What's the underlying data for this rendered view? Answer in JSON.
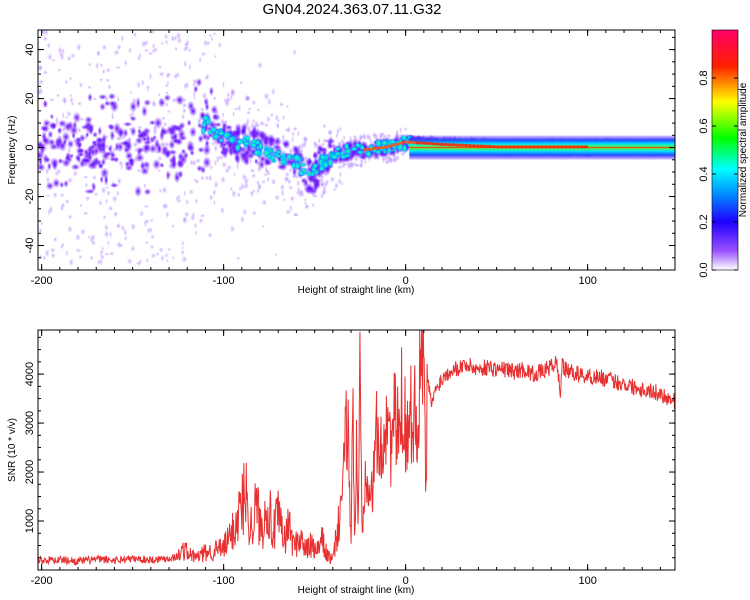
{
  "figure_title": "GN04.2024.363.07.11.G32",
  "chart_data": [
    {
      "type": "heatmap",
      "panel": "spectrogram",
      "xlabel": "Height of straight line (km)",
      "ylabel": "Frequency (Hz)",
      "xlim": [
        -202,
        148
      ],
      "ylim": [
        -50,
        48
      ],
      "x_ticks": [
        -200,
        -100,
        0,
        100
      ],
      "x_tick_labels": [
        "-200",
        "-100",
        "0",
        "100"
      ],
      "y_ticks": [
        -40,
        -20,
        0,
        20,
        40
      ],
      "y_tick_labels": [
        "-40",
        "-20",
        "0",
        "20",
        "40"
      ],
      "colorbar": {
        "label": "Normalized spectral amplitude",
        "range": [
          0,
          1
        ],
        "ticks": [
          0.0,
          0.2,
          0.4,
          0.6,
          0.8
        ],
        "tick_labels": [
          "0.0",
          "0.2",
          "0.4",
          "0.6",
          "0.8"
        ],
        "colors": [
          "#ffffff",
          "#6600ff",
          "#0000ff",
          "#00ffff",
          "#00ff00",
          "#ffff00",
          "#ff0000",
          "#ff0066"
        ]
      },
      "ridge_center_hz": [
        {
          "x": -200,
          "y": 1
        },
        {
          "x": -180,
          "y": 1
        },
        {
          "x": -160,
          "y": 1
        },
        {
          "x": -140,
          "y": 0
        },
        {
          "x": -120,
          "y": 2
        },
        {
          "x": -110,
          "y": 10
        },
        {
          "x": -100,
          "y": 3
        },
        {
          "x": -90,
          "y": 2
        },
        {
          "x": -80,
          "y": 0
        },
        {
          "x": -70,
          "y": -4
        },
        {
          "x": -60,
          "y": -6
        },
        {
          "x": -52,
          "y": -12
        },
        {
          "x": -45,
          "y": -5
        },
        {
          "x": -35,
          "y": -2
        },
        {
          "x": -20,
          "y": -1
        },
        {
          "x": -10,
          "y": 0
        },
        {
          "x": 0,
          "y": 2
        },
        {
          "x": 20,
          "y": 1
        },
        {
          "x": 50,
          "y": 0
        },
        {
          "x": 85,
          "y": 0
        },
        {
          "x": 148,
          "y": 0
        }
      ]
    },
    {
      "type": "line",
      "panel": "snr",
      "xlabel": "Height of straight line (km)",
      "ylabel": "SNR (10 * v/v)",
      "xlim": [
        -202,
        148
      ],
      "ylim": [
        0,
        4900
      ],
      "x_ticks": [
        -200,
        -100,
        0,
        100
      ],
      "x_tick_labels": [
        "-200",
        "-100",
        "0",
        "100"
      ],
      "y_ticks": [
        1000,
        2000,
        3000,
        4000
      ],
      "y_tick_labels": [
        "1000",
        "2000",
        "3000",
        "4000"
      ],
      "line_color": "#e83030",
      "series": [
        {
          "x": [
            -202,
            -190,
            -180,
            -170,
            -160,
            -150,
            -140,
            -130,
            -125,
            -122,
            -118,
            -115,
            -110,
            -105,
            -100,
            -96,
            -92,
            -88,
            -85,
            -82,
            -79,
            -76,
            -73,
            -70,
            -67,
            -64,
            -61,
            -58,
            -55,
            -52,
            -49,
            -46,
            -43,
            -40,
            -37,
            -34,
            -32,
            -30,
            -29,
            -28,
            -27,
            -26,
            -25,
            -24,
            -22,
            -20,
            -18,
            -16,
            -14,
            -12,
            -10,
            -8,
            -6,
            -4,
            -2,
            0,
            2,
            4,
            6,
            8,
            10,
            11,
            12,
            14,
            16,
            18,
            20,
            22,
            24,
            26,
            28,
            30,
            33,
            36,
            40,
            45,
            50,
            55,
            60,
            65,
            70,
            75,
            80,
            83,
            85,
            86,
            87,
            90,
            95,
            100,
            105,
            110,
            115,
            120,
            125,
            130,
            135,
            140,
            145,
            148
          ],
          "y": [
            200,
            210,
            180,
            220,
            200,
            230,
            210,
            240,
            280,
            420,
            300,
            260,
            350,
            400,
            450,
            700,
            1100,
            1600,
            900,
            1300,
            800,
            1500,
            700,
            1100,
            600,
            900,
            450,
            700,
            400,
            500,
            350,
            600,
            300,
            200,
            900,
            2000,
            3200,
            600,
            3800,
            300,
            2400,
            1000,
            4400,
            700,
            2200,
            1900,
            1500,
            3000,
            2200,
            2800,
            3300,
            2500,
            3100,
            2700,
            3500,
            3000,
            2900,
            3400,
            3100,
            3800,
            4700,
            1300,
            3900,
            3400,
            3600,
            3800,
            3900,
            4000,
            4050,
            4150,
            4100,
            4150,
            4200,
            4150,
            4100,
            4150,
            4100,
            4100,
            4050,
            4100,
            4000,
            4050,
            4150,
            4250,
            3600,
            4300,
            4100,
            4050,
            4000,
            3950,
            3950,
            3900,
            3850,
            3800,
            3750,
            3700,
            3650,
            3600,
            3500,
            3450
          ]
        }
      ]
    }
  ]
}
